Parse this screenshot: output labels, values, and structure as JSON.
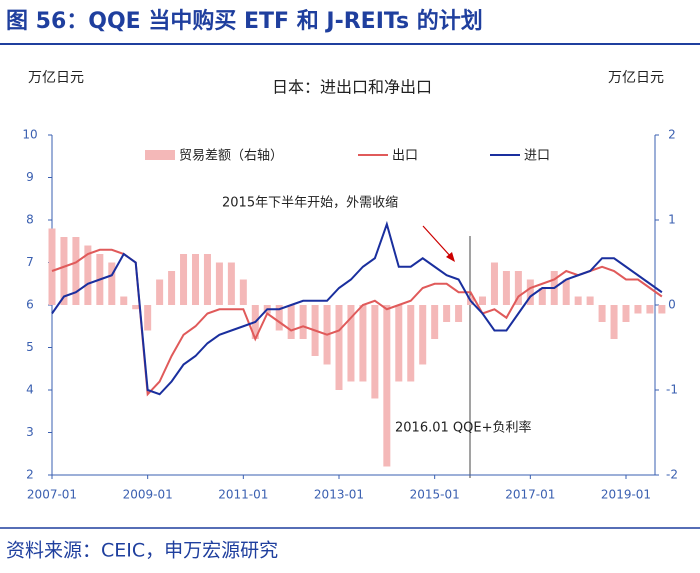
{
  "chart_data": {
    "type": "bar-line",
    "title": "图 56：QQE 当中购买 ETF 和 J-REITs 的计划",
    "subtitle": "日本：进出口和净出口",
    "ylabel": "万亿日元",
    "y2label": "万亿日元",
    "annotations": [
      "2015年下半年开始，外需收缩",
      "2016.01 QQE+负利率"
    ],
    "source": "资料来源：CEIC，申万宏源研究",
    "categories": [
      "2007-01",
      null,
      null,
      null,
      null,
      null,
      null,
      null,
      "2009-01",
      null,
      null,
      null,
      null,
      null,
      null,
      null,
      "2011-01",
      null,
      null,
      null,
      null,
      null,
      null,
      null,
      "2013-01",
      null,
      null,
      null,
      null,
      null,
      null,
      null,
      "2015-01",
      null,
      null,
      null,
      null,
      null,
      null,
      null,
      "2017-01",
      null,
      null,
      null,
      null,
      null,
      null,
      null,
      "2019-01",
      null,
      null,
      null
    ],
    "series": [
      {
        "name": "贸易差额（右轴）",
        "type": "bar",
        "axis": "y2",
        "color": "#f4b8b8",
        "values": [
          0.9,
          0.8,
          0.8,
          0.7,
          0.6,
          0.5,
          0.1,
          -0.05,
          -0.3,
          0.3,
          0.4,
          0.6,
          0.6,
          0.6,
          0.5,
          0.5,
          0.3,
          -0.4,
          -0.1,
          -0.3,
          -0.4,
          -0.4,
          -0.6,
          -0.7,
          -1.0,
          -0.9,
          -0.9,
          -1.1,
          -1.9,
          -0.9,
          -0.9,
          -0.7,
          -0.4,
          -0.2,
          -0.2,
          0.1,
          0.1,
          0.5,
          0.4,
          0.4,
          0.3,
          0.2,
          0.4,
          0.3,
          0.1,
          0.1,
          -0.2,
          -0.4,
          -0.2,
          -0.1,
          -0.1,
          -0.1
        ]
      },
      {
        "name": "出口",
        "type": "line",
        "color": "#e05a5a",
        "values": [
          6.8,
          6.9,
          7.0,
          7.2,
          7.3,
          7.3,
          7.2,
          7.0,
          3.9,
          4.2,
          4.8,
          5.3,
          5.5,
          5.8,
          5.9,
          5.9,
          5.9,
          5.2,
          5.8,
          5.6,
          5.4,
          5.5,
          5.4,
          5.3,
          5.4,
          5.7,
          6.0,
          6.1,
          5.9,
          6.0,
          6.1,
          6.4,
          6.5,
          6.5,
          6.3,
          6.3,
          5.8,
          5.9,
          5.7,
          6.2,
          6.4,
          6.5,
          6.6,
          6.8,
          6.7,
          6.8,
          6.9,
          6.8,
          6.6,
          6.6,
          6.4,
          6.2
        ]
      },
      {
        "name": "进口",
        "type": "line",
        "color": "#1a2f9e",
        "values": [
          5.8,
          6.2,
          6.3,
          6.5,
          6.6,
          6.7,
          7.2,
          7.0,
          4.0,
          3.9,
          4.2,
          4.6,
          4.8,
          5.1,
          5.3,
          5.4,
          5.5,
          5.6,
          5.9,
          5.9,
          6.0,
          6.1,
          6.1,
          6.1,
          6.4,
          6.6,
          6.9,
          7.1,
          7.9,
          6.9,
          6.9,
          7.1,
          6.9,
          6.7,
          6.6,
          6.1,
          5.8,
          5.4,
          5.4,
          5.8,
          6.2,
          6.4,
          6.4,
          6.6,
          6.7,
          6.8,
          7.1,
          7.1,
          6.9,
          6.7,
          6.5,
          6.3
        ]
      }
    ],
    "ylim": [
      2,
      10
    ],
    "yticks": [
      2,
      3,
      4,
      5,
      6,
      7,
      8,
      9,
      10
    ],
    "y2lim": [
      -2,
      2
    ],
    "y2ticks": [
      -2,
      -1,
      0,
      1,
      2
    ]
  }
}
